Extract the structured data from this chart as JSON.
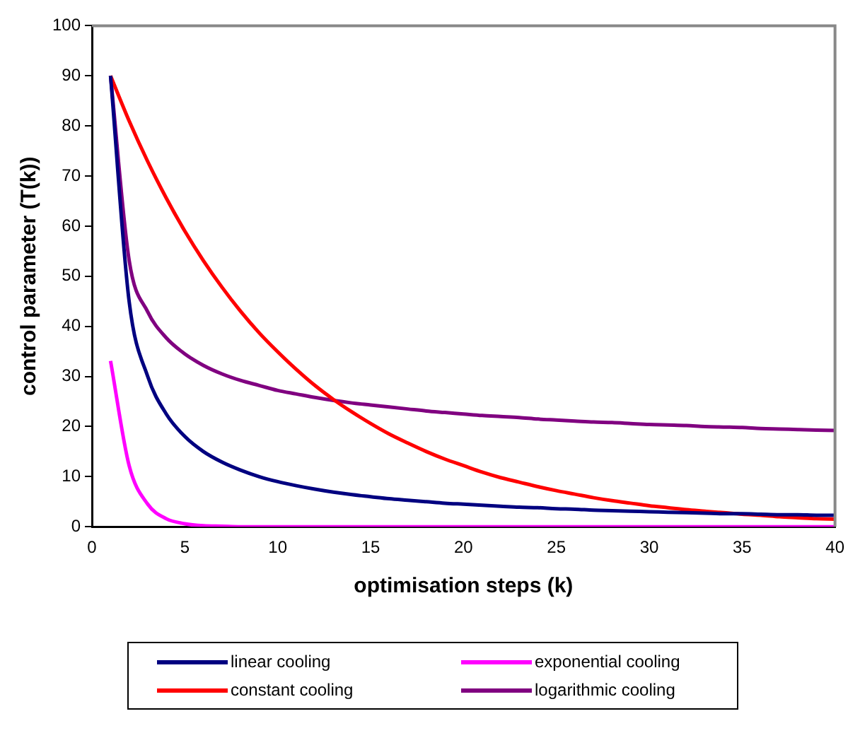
{
  "chart_data": {
    "type": "line",
    "xlabel": "optimisation steps (k)",
    "ylabel": "control parameter (T(k))",
    "x": [
      1,
      2,
      3,
      4,
      5,
      6,
      7,
      8,
      9,
      10,
      11,
      12,
      13,
      14,
      15,
      16,
      17,
      18,
      19,
      20,
      21,
      22,
      23,
      24,
      25,
      26,
      27,
      28,
      29,
      30,
      31,
      32,
      33,
      34,
      35,
      36,
      37,
      38,
      39,
      40
    ],
    "xlim": [
      0,
      40
    ],
    "xticks": [
      0,
      5,
      10,
      15,
      20,
      25,
      30,
      35,
      40
    ],
    "ylim": [
      0,
      100
    ],
    "yticks": [
      0,
      10,
      20,
      30,
      40,
      50,
      60,
      70,
      80,
      90,
      100
    ],
    "grid": false,
    "legend": "bottom",
    "marker": "none",
    "line_style": "solid",
    "series": [
      {
        "name": "linear cooling",
        "color": "#000080",
        "values": [
          90,
          45,
          30,
          22.5,
          18,
          15,
          12.9,
          11.3,
          10,
          9,
          8.2,
          7.5,
          6.9,
          6.4,
          6,
          5.6,
          5.3,
          5,
          4.7,
          4.5,
          4.3,
          4.1,
          3.9,
          3.8,
          3.6,
          3.5,
          3.3,
          3.2,
          3.1,
          3,
          2.9,
          2.8,
          2.7,
          2.6,
          2.6,
          2.5,
          2.4,
          2.4,
          2.3,
          2.3
        ]
      },
      {
        "name": "exponential cooling",
        "color": "#ff00ff",
        "values": [
          33.1,
          12.2,
          4.5,
          1.6,
          0.6,
          0.2,
          0.1,
          0,
          0,
          0,
          0,
          0,
          0,
          0,
          0,
          0,
          0,
          0,
          0,
          0,
          0,
          0,
          0,
          0,
          0,
          0,
          0,
          0,
          0,
          0,
          0,
          0,
          0,
          0,
          0,
          0,
          0,
          0,
          0,
          0
        ]
      },
      {
        "name": "constant cooling",
        "color": "#ff0000",
        "values": [
          90,
          81,
          72.9,
          65.6,
          59,
          53.1,
          47.8,
          43,
          38.7,
          34.9,
          31.4,
          28.2,
          25.4,
          22.9,
          20.6,
          18.5,
          16.7,
          15,
          13.5,
          12.2,
          10.9,
          9.8,
          8.9,
          8,
          7.2,
          6.5,
          5.8,
          5.2,
          4.7,
          4.2,
          3.8,
          3.4,
          3.1,
          2.8,
          2.5,
          2.3,
          2,
          1.8,
          1.6,
          1.5
        ]
      },
      {
        "name": "logarithmic cooling",
        "color": "#800080",
        "values": [
          90,
          53.2,
          42.9,
          37.7,
          34.5,
          32.2,
          30.5,
          29.2,
          28.2,
          27.2,
          26.5,
          25.8,
          25.2,
          24.7,
          24.3,
          23.9,
          23.5,
          23.1,
          22.8,
          22.5,
          22.2,
          22,
          21.8,
          21.5,
          21.3,
          21.1,
          20.9,
          20.8,
          20.6,
          20.4,
          20.3,
          20.2,
          20,
          19.9,
          19.8,
          19.6,
          19.5,
          19.4,
          19.3,
          19.2
        ]
      }
    ]
  }
}
